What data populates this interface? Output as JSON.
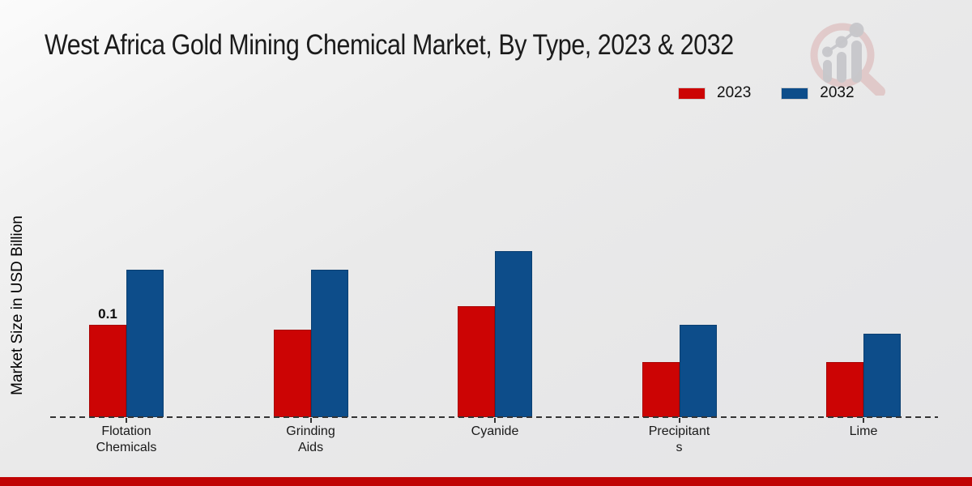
{
  "title": "West Africa Gold Mining Chemical Market, By Type, 2023 & 2032",
  "ylabel": "Market Size in USD Billion",
  "legend": [
    {
      "label": "2023",
      "color": "#cc0404"
    },
    {
      "label": "2032",
      "color": "#0d4d8a"
    }
  ],
  "footer": {
    "bar_color": "#c00404"
  },
  "watermark": {
    "icon": "magnifier-bar-chart-logo",
    "ring_color": "#d9abab",
    "bars_color": "#c7c7cb"
  },
  "chart_data": {
    "type": "bar",
    "title": "West Africa Gold Mining Chemical Market, By Type, 2023 & 2032",
    "xlabel": "",
    "ylabel": "Market Size in USD Billion",
    "categories": [
      "Flotation Chemicals",
      "Grinding Aids",
      "Cyanide",
      "Precipitants",
      "Lime"
    ],
    "category_lines": [
      [
        "Flotation",
        "Chemicals"
      ],
      [
        "Grinding",
        "Aids"
      ],
      [
        "Cyanide"
      ],
      [
        "Precipitant",
        "s"
      ],
      [
        "Lime"
      ]
    ],
    "series": [
      {
        "name": "2023",
        "color": "#cc0404",
        "values": [
          0.1,
          0.095,
          0.12,
          0.06,
          0.06
        ]
      },
      {
        "name": "2032",
        "color": "#0d4d8a",
        "values": [
          0.16,
          0.16,
          0.18,
          0.1,
          0.09
        ]
      }
    ],
    "annotations": [
      {
        "series": "2023",
        "category": "Flotation Chemicals",
        "text": "0.1"
      }
    ],
    "ylim": [
      0,
      0.2
    ],
    "grid": false,
    "y_axis_ticks_visible": false,
    "legend_position": "top-right",
    "baseline_style": "dashed"
  }
}
